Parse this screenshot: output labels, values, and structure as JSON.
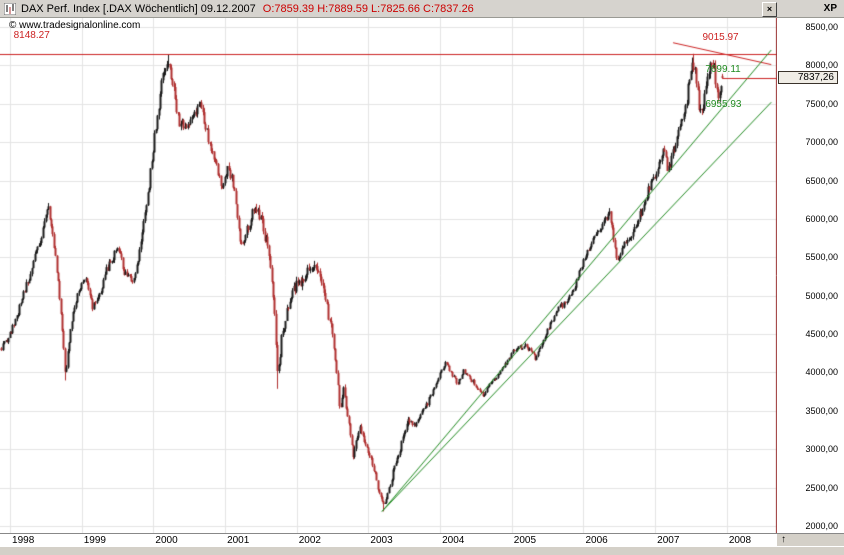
{
  "window": {
    "title": "DAX Perf. Index [.DAX  Wöchentlich] 09.12.2007",
    "ohlc": "O:7859.39 H:7889.59 L:7825.66 C:7837.26",
    "copyright": "© www.tradesignalonline.com",
    "close_label": "×",
    "corner_label": "XP"
  },
  "axis": {
    "price_box": "7837,26",
    "up_arrow": "↑",
    "y_ticks": [
      {
        "value": 8500,
        "label": "8500,00"
      },
      {
        "value": 8000,
        "label": "8000,00"
      },
      {
        "value": 7500,
        "label": "7500,00"
      },
      {
        "value": 7000,
        "label": "7000,00"
      },
      {
        "value": 6500,
        "label": "6500,00"
      },
      {
        "value": 6000,
        "label": "6000,00"
      },
      {
        "value": 5500,
        "label": "5500,00"
      },
      {
        "value": 5000,
        "label": "5000,00"
      },
      {
        "value": 4500,
        "label": "4500,00"
      },
      {
        "value": 4000,
        "label": "4000,00"
      },
      {
        "value": 3500,
        "label": "3500,00"
      },
      {
        "value": 3000,
        "label": "3000,00"
      },
      {
        "value": 2500,
        "label": "2500,00"
      },
      {
        "value": 2000,
        "label": "2000,00"
      }
    ],
    "x_ticks": [
      {
        "value": 1998,
        "label": "1998"
      },
      {
        "value": 1999,
        "label": "1999"
      },
      {
        "value": 2000,
        "label": "2000"
      },
      {
        "value": 2001,
        "label": "2001"
      },
      {
        "value": 2002,
        "label": "2002"
      },
      {
        "value": 2003,
        "label": "2003"
      },
      {
        "value": 2004,
        "label": "2004"
      },
      {
        "value": 2005,
        "label": "2005"
      },
      {
        "value": 2006,
        "label": "2006"
      },
      {
        "value": 2007,
        "label": "2007"
      },
      {
        "value": 2008,
        "label": "2008"
      }
    ]
  },
  "chart_data": {
    "type": "candlestick",
    "title": "DAX Perf. Index [.DAX Wöchentlich]",
    "frequency": "weekly",
    "x_range": [
      1997.86,
      2008.7
    ],
    "y_range": [
      1909,
      8617
    ],
    "end_year": 2007.955,
    "grid": {
      "y_min": 2000,
      "y_max": 8500,
      "y_step": 500,
      "x_years": [
        1998,
        1999,
        2000,
        2001,
        2002,
        2003,
        2004,
        2005,
        2006,
        2007,
        2008
      ]
    },
    "last": {
      "date": "09.12.2007",
      "open": 7859.39,
      "high": 7889.59,
      "low": 7825.66,
      "close": 7837.26
    },
    "up_color": "#1a1a1a",
    "down_color": "#b03030",
    "key_points": [
      [
        1998.77,
        3896
      ],
      [
        2000.2,
        8136
      ],
      [
        2001.73,
        3787
      ],
      [
        2003.2,
        2190
      ],
      [
        2007.53,
        8151
      ]
    ],
    "anchors": [
      [
        1997.86,
        4300
      ],
      [
        1998.0,
        4500
      ],
      [
        1998.15,
        4900
      ],
      [
        1998.3,
        5350
      ],
      [
        1998.45,
        5850
      ],
      [
        1998.52,
        6190
      ],
      [
        1998.62,
        5600
      ],
      [
        1998.7,
        4900
      ],
      [
        1998.77,
        3950
      ],
      [
        1998.85,
        4650
      ],
      [
        1998.95,
        5050
      ],
      [
        1999.05,
        5250
      ],
      [
        1999.15,
        4850
      ],
      [
        1999.25,
        5000
      ],
      [
        1999.35,
        5350
      ],
      [
        1999.5,
        5600
      ],
      [
        1999.6,
        5300
      ],
      [
        1999.72,
        5150
      ],
      [
        1999.82,
        5650
      ],
      [
        1999.92,
        6300
      ],
      [
        2000.0,
        6950
      ],
      [
        2000.08,
        7550
      ],
      [
        2000.15,
        7950
      ],
      [
        2000.2,
        8100
      ],
      [
        2000.28,
        7700
      ],
      [
        2000.35,
        7250
      ],
      [
        2000.45,
        7200
      ],
      [
        2000.55,
        7350
      ],
      [
        2000.65,
        7450
      ],
      [
        2000.75,
        7100
      ],
      [
        2000.85,
        6750
      ],
      [
        2000.95,
        6450
      ],
      [
        2001.03,
        6650
      ],
      [
        2001.12,
        6450
      ],
      [
        2001.22,
        5650
      ],
      [
        2001.3,
        5850
      ],
      [
        2001.4,
        6150
      ],
      [
        2001.5,
        6000
      ],
      [
        2001.58,
        5700
      ],
      [
        2001.65,
        5250
      ],
      [
        2001.7,
        4550
      ],
      [
        2001.73,
        3900
      ],
      [
        2001.78,
        4400
      ],
      [
        2001.88,
        4850
      ],
      [
        2001.97,
        5100
      ],
      [
        2002.05,
        5200
      ],
      [
        2002.15,
        5300
      ],
      [
        2002.22,
        5400
      ],
      [
        2002.32,
        5250
      ],
      [
        2002.42,
        4850
      ],
      [
        2002.5,
        4450
      ],
      [
        2002.55,
        4050
      ],
      [
        2002.6,
        3500
      ],
      [
        2002.65,
        3800
      ],
      [
        2002.72,
        3350
      ],
      [
        2002.78,
        2900
      ],
      [
        2002.83,
        3100
      ],
      [
        2002.88,
        3300
      ],
      [
        2002.93,
        3150
      ],
      [
        2003.0,
        2950
      ],
      [
        2003.07,
        2750
      ],
      [
        2003.13,
        2500
      ],
      [
        2003.2,
        2250
      ],
      [
        2003.28,
        2450
      ],
      [
        2003.35,
        2750
      ],
      [
        2003.42,
        2950
      ],
      [
        2003.5,
        3250
      ],
      [
        2003.57,
        3400
      ],
      [
        2003.63,
        3300
      ],
      [
        2003.72,
        3450
      ],
      [
        2003.82,
        3600
      ],
      [
        2003.92,
        3800
      ],
      [
        2004.0,
        4000
      ],
      [
        2004.08,
        4120
      ],
      [
        2004.18,
        3950
      ],
      [
        2004.25,
        3850
      ],
      [
        2004.32,
        4020
      ],
      [
        2004.4,
        3950
      ],
      [
        2004.5,
        3820
      ],
      [
        2004.6,
        3700
      ],
      [
        2004.7,
        3850
      ],
      [
        2004.8,
        3950
      ],
      [
        2004.9,
        4100
      ],
      [
        2005.0,
        4250
      ],
      [
        2005.1,
        4330
      ],
      [
        2005.2,
        4350
      ],
      [
        2005.28,
        4250
      ],
      [
        2005.33,
        4180
      ],
      [
        2005.45,
        4450
      ],
      [
        2005.55,
        4650
      ],
      [
        2005.65,
        4850
      ],
      [
        2005.75,
        4900
      ],
      [
        2005.85,
        5050
      ],
      [
        2005.95,
        5350
      ],
      [
        2006.05,
        5550
      ],
      [
        2006.15,
        5750
      ],
      [
        2006.25,
        5900
      ],
      [
        2006.35,
        6100
      ],
      [
        2006.4,
        5850
      ],
      [
        2006.47,
        5400
      ],
      [
        2006.55,
        5650
      ],
      [
        2006.65,
        5750
      ],
      [
        2006.75,
        5950
      ],
      [
        2006.85,
        6250
      ],
      [
        2006.95,
        6500
      ],
      [
        2007.05,
        6700
      ],
      [
        2007.12,
        6900
      ],
      [
        2007.18,
        6600
      ],
      [
        2007.25,
        6900
      ],
      [
        2007.35,
        7200
      ],
      [
        2007.42,
        7450
      ],
      [
        2007.48,
        7900
      ],
      [
        2007.53,
        8050
      ],
      [
        2007.58,
        7750
      ],
      [
        2007.62,
        7350
      ],
      [
        2007.68,
        7550
      ],
      [
        2007.73,
        7850
      ],
      [
        2007.78,
        8000
      ],
      [
        2007.83,
        7900
      ],
      [
        2007.87,
        7650
      ],
      [
        2007.9,
        7600
      ],
      [
        2007.95,
        7837
      ]
    ],
    "trendlines": [
      {
        "name": "horizontal-resistance-line",
        "type": "hline",
        "color": "#cc2222",
        "value": 8148.27,
        "label": "8148.27",
        "label_pos": [
          1998.05,
          8330
        ]
      },
      {
        "name": "down-trendline",
        "type": "segment",
        "color": "#cc2222",
        "from": [
          2007.25,
          8295
        ],
        "to": [
          2008.62,
          8010
        ],
        "label": "9015.97",
        "label_pos": [
          2007.66,
          8300
        ]
      },
      {
        "name": "up-trendline-steep",
        "type": "segment",
        "color": "#1f8a1f",
        "from": [
          2003.19,
          2190
        ],
        "to": [
          2008.62,
          8200
        ],
        "label": "7699.11",
        "label_pos": [
          2007.7,
          7890
        ]
      },
      {
        "name": "up-trendline-shallow",
        "type": "segment",
        "color": "#1f8a1f",
        "from": [
          2003.19,
          2190
        ],
        "to": [
          2008.62,
          7520
        ],
        "label": "6955.93",
        "label_pos": [
          2007.7,
          7430
        ]
      }
    ]
  }
}
